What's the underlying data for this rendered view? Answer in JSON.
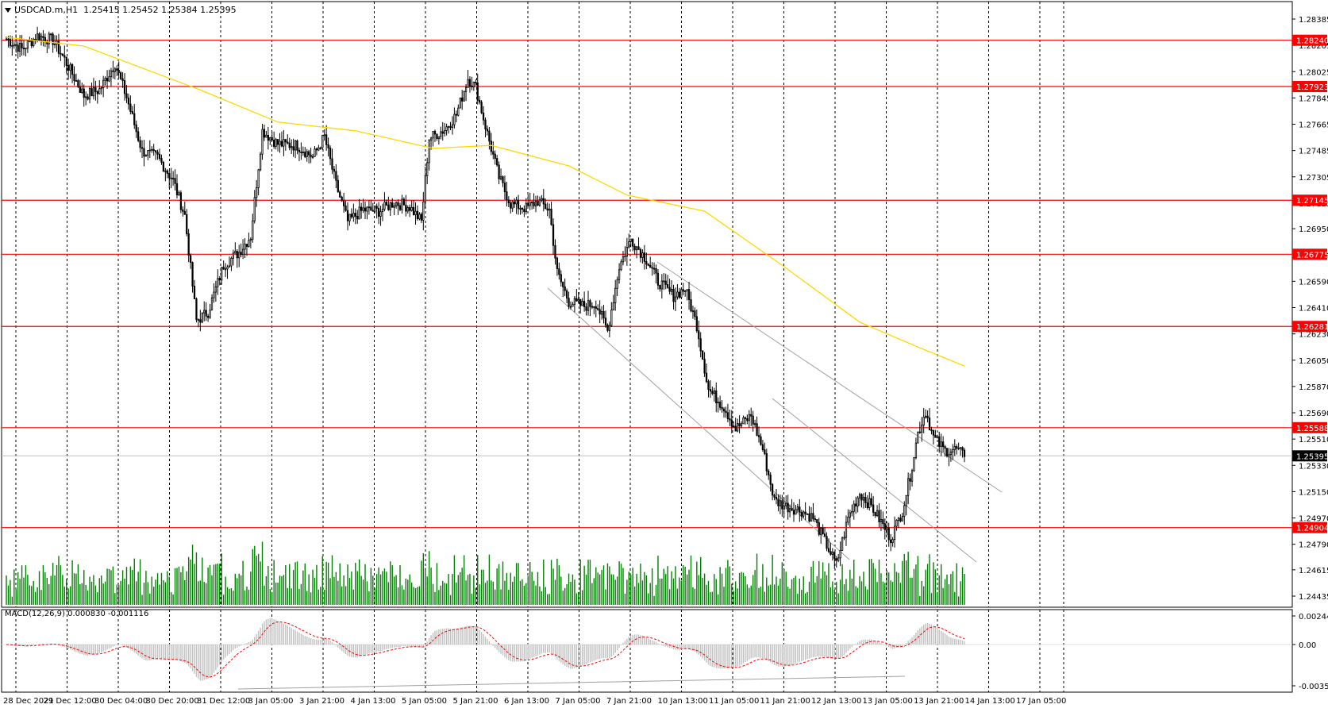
{
  "header": {
    "symbol": "USDCAD.m,H1",
    "ohlc": "1.25415 1.25452 1.25384 1.25395"
  },
  "price_axis": {
    "ticks": [
      "1.28385",
      "1.28205",
      "1.28025",
      "1.27845",
      "1.27665",
      "1.27485",
      "1.27305",
      "1.27125",
      "1.26950",
      "1.26770",
      "1.26590",
      "1.26410",
      "1.26230",
      "1.26050",
      "1.25870",
      "1.25690",
      "1.25510",
      "1.25330",
      "1.25150",
      "1.24970",
      "1.24790",
      "1.24615",
      "1.24435"
    ],
    "range": [
      1.24435,
      1.28385
    ]
  },
  "levels": [
    {
      "label": "1.28240",
      "value": 1.2824
    },
    {
      "label": "1.27923",
      "value": 1.27923
    },
    {
      "label": "1.27145",
      "value": 1.27145
    },
    {
      "label": "1.26775",
      "value": 1.26775
    },
    {
      "label": "1.26281",
      "value": 1.26281
    },
    {
      "label": "1.25588",
      "value": 1.25588
    },
    {
      "label": "1.24904",
      "value": 1.24904
    }
  ],
  "current_price": {
    "label": "1.25395",
    "value": 1.25395
  },
  "macd": {
    "label": "MACD(12,26,9) 0.000830 -0.001116",
    "ticks": [
      "0.002443",
      "0.00",
      "-0.003528"
    ],
    "range": [
      -0.003528,
      0.002443
    ]
  },
  "time_axis": {
    "labels": [
      "28 Dec 2021",
      "29 Dec 12:00",
      "30 Dec 04:00",
      "30 Dec 20:00",
      "31 Dec 12:00",
      "3 Jan 05:00",
      "3 Jan 21:00",
      "4 Jan 13:00",
      "5 Jan 05:00",
      "5 Jan 21:00",
      "6 Jan 13:00",
      "7 Jan 05:00",
      "7 Jan 21:00",
      "10 Jan 13:00",
      "11 Jan 05:00",
      "11 Jan 21:00",
      "12 Jan 13:00",
      "13 Jan 05:00",
      "13 Jan 21:00",
      "14 Jan 13:00",
      "17 Jan 05:00"
    ]
  },
  "colors": {
    "level_line": "#ff0000",
    "level_tag": "#ff0000",
    "current_tag": "#000000",
    "moving_average": "#ffd700",
    "volume": "#008000",
    "macd_hist": "#c0c0c0",
    "macd_signal": "#ff0000"
  },
  "chart_data": {
    "type": "candlestick",
    "series": [
      {
        "name": "USDCAD.m,H1",
        "anchors": [
          [
            0,
            1.2825
          ],
          [
            8,
            1.2818
          ],
          [
            16,
            1.2827
          ],
          [
            24,
            1.2824
          ],
          [
            30,
            1.2811
          ],
          [
            40,
            1.2786
          ],
          [
            48,
            1.279
          ],
          [
            56,
            1.2808
          ],
          [
            62,
            1.2785
          ],
          [
            70,
            1.2748
          ],
          [
            78,
            1.2744
          ],
          [
            86,
            1.2728
          ],
          [
            92,
            1.2704
          ],
          [
            98,
            1.2632
          ],
          [
            104,
            1.2638
          ],
          [
            112,
            1.267
          ],
          [
            120,
            1.2679
          ],
          [
            126,
            1.269
          ],
          [
            132,
            1.2762
          ],
          [
            140,
            1.2753
          ],
          [
            150,
            1.2752
          ],
          [
            158,
            1.2744
          ],
          [
            164,
            1.2758
          ],
          [
            170,
            1.2725
          ],
          [
            176,
            1.27
          ],
          [
            184,
            1.2708
          ],
          [
            192,
            1.2707
          ],
          [
            200,
            1.2713
          ],
          [
            208,
            1.271
          ],
          [
            214,
            1.27
          ],
          [
            218,
            1.2757
          ],
          [
            226,
            1.2763
          ],
          [
            232,
            1.2773
          ],
          [
            238,
            1.2798
          ],
          [
            242,
            1.2792
          ],
          [
            248,
            1.276
          ],
          [
            254,
            1.273
          ],
          [
            260,
            1.2712
          ],
          [
            268,
            1.2709
          ],
          [
            274,
            1.2714
          ],
          [
            280,
            1.2708
          ],
          [
            284,
            1.2665
          ],
          [
            290,
            1.2645
          ],
          [
            298,
            1.2642
          ],
          [
            304,
            1.2644
          ],
          [
            310,
            1.2625
          ],
          [
            316,
            1.2669
          ],
          [
            322,
            1.2688
          ],
          [
            330,
            1.2674
          ],
          [
            336,
            1.2659
          ],
          [
            344,
            1.2649
          ],
          [
            350,
            1.2654
          ],
          [
            356,
            1.2629
          ],
          [
            362,
            1.2585
          ],
          [
            370,
            1.2573
          ],
          [
            376,
            1.2558
          ],
          [
            384,
            1.2567
          ],
          [
            390,
            1.2544
          ],
          [
            396,
            1.2509
          ],
          [
            402,
            1.2505
          ],
          [
            410,
            1.2502
          ],
          [
            416,
            1.2497
          ],
          [
            422,
            1.2481
          ],
          [
            428,
            1.2465
          ],
          [
            434,
            1.2497
          ],
          [
            440,
            1.2514
          ],
          [
            446,
            1.2505
          ],
          [
            452,
            1.2492
          ],
          [
            456,
            1.2483
          ],
          [
            462,
            1.2502
          ],
          [
            466,
            1.2526
          ],
          [
            470,
            1.2555
          ],
          [
            474,
            1.257
          ],
          [
            478,
            1.2552
          ],
          [
            484,
            1.2543
          ],
          [
            490,
            1.2544
          ],
          [
            494,
            1.2539
          ]
        ]
      }
    ],
    "moving_average": [
      [
        0,
        1.2826
      ],
      [
        40,
        1.282
      ],
      [
        100,
        1.279
      ],
      [
        140,
        1.2768
      ],
      [
        180,
        1.2762
      ],
      [
        220,
        1.275
      ],
      [
        250,
        1.2752
      ],
      [
        290,
        1.2738
      ],
      [
        320,
        1.2718
      ],
      [
        360,
        1.2707
      ],
      [
        400,
        1.267
      ],
      [
        440,
        1.2631
      ],
      [
        470,
        1.2614
      ],
      [
        494,
        1.2601
      ]
    ]
  }
}
